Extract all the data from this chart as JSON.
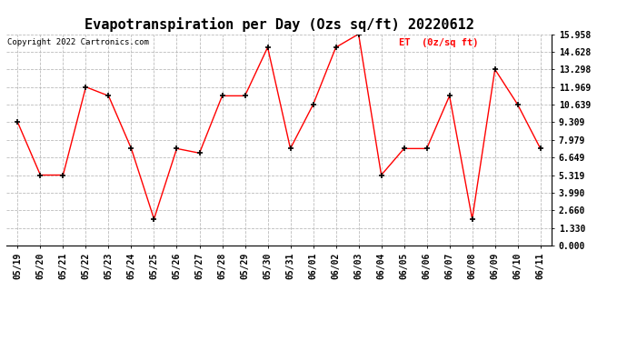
{
  "title": "Evapotranspiration per Day (Ozs sq/ft) 20220612",
  "copyright_text": "Copyright 2022 Cartronics.com",
  "legend_label": "ET  (0z/sq ft)",
  "dates": [
    "05/19",
    "05/20",
    "05/21",
    "05/22",
    "05/23",
    "05/24",
    "05/25",
    "05/26",
    "05/27",
    "05/28",
    "05/29",
    "05/30",
    "05/31",
    "06/01",
    "06/02",
    "06/03",
    "06/04",
    "06/05",
    "06/06",
    "06/07",
    "06/08",
    "06/09",
    "06/10",
    "06/11"
  ],
  "values": [
    9.309,
    5.319,
    5.319,
    11.969,
    11.299,
    7.319,
    2.0,
    7.319,
    6.979,
    11.299,
    11.299,
    14.958,
    7.319,
    10.639,
    14.958,
    15.958,
    5.319,
    7.319,
    7.319,
    11.299,
    2.0,
    13.298,
    10.639,
    7.319
  ],
  "ylim": [
    0.0,
    15.958
  ],
  "yticks": [
    0.0,
    1.33,
    2.66,
    3.99,
    5.319,
    6.649,
    7.979,
    9.309,
    10.639,
    11.969,
    13.298,
    14.628,
    15.958
  ],
  "line_color": "red",
  "marker": "+",
  "marker_color": "black",
  "grid_color": "#bbbbbb",
  "background_color": "white",
  "title_fontsize": 11,
  "tick_fontsize": 7,
  "copyright_fontsize": 6.5,
  "legend_fontsize": 7.5,
  "legend_color": "red"
}
